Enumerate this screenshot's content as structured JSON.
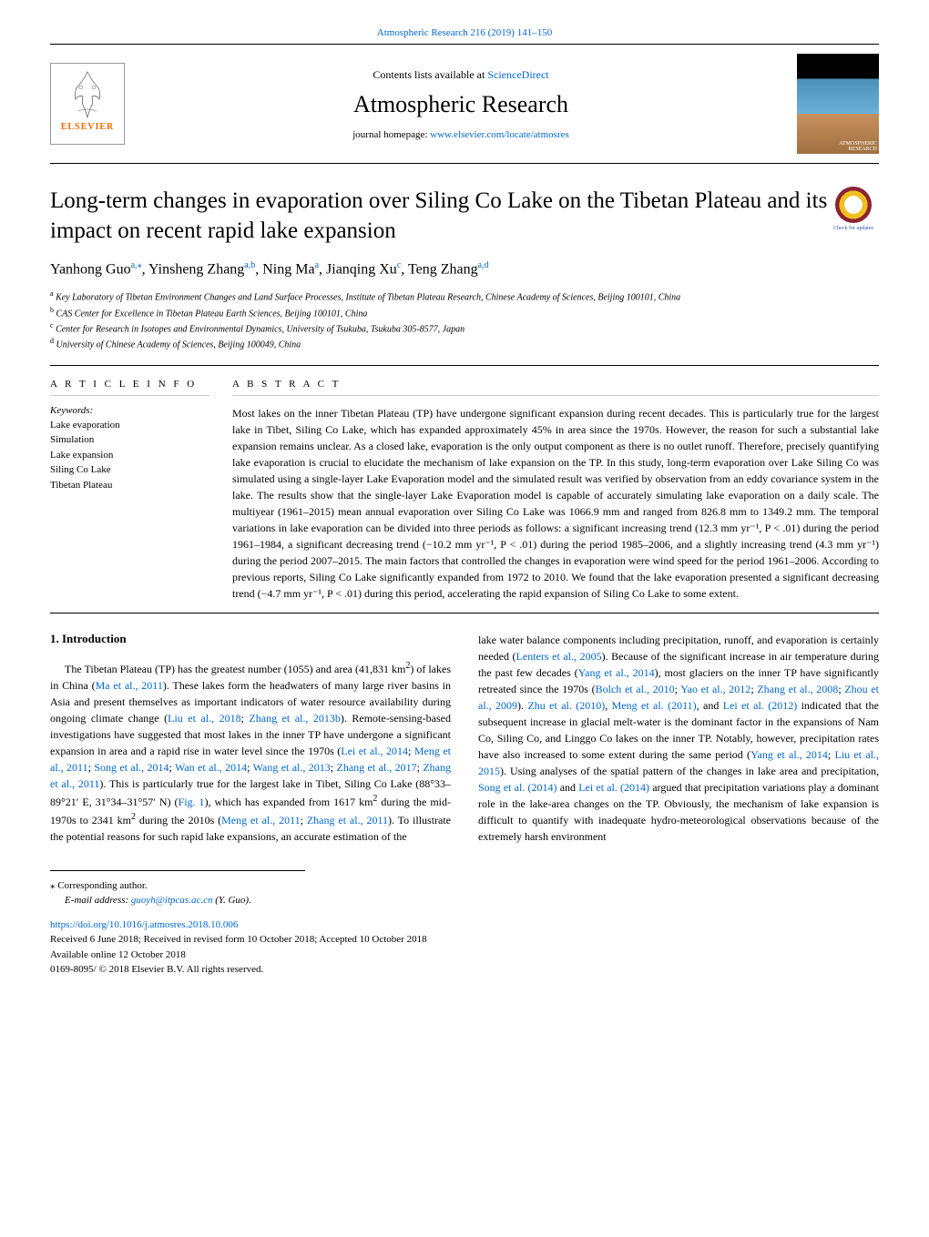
{
  "citation": "Atmospheric Research 216 (2019) 141–150",
  "header": {
    "contents_prefix": "Contents lists available at ",
    "contents_link": "ScienceDirect",
    "journal": "Atmospheric Research",
    "homepage_prefix": "journal homepage: ",
    "homepage_url": "www.elsevier.com/locate/atmosres",
    "publisher": "ELSEVIER",
    "cover_label1": "ATMOSPHERIC",
    "cover_label2": "RESEARCH"
  },
  "check_updates": "Check for updates",
  "article": {
    "title": "Long-term changes in evaporation over Siling Co Lake on the Tibetan Plateau and its impact on recent rapid lake expansion",
    "authors_html": "Yanhong Guo<sup>a,</sup><sup>⁎</sup>, Yinsheng Zhang<sup>a,b</sup>, Ning Ma<sup>a</sup>, Jianqing Xu<sup>c</sup>, Teng Zhang<sup>a,d</sup>",
    "affiliations": {
      "a": "Key Laboratory of Tibetan Environment Changes and Land Surface Processes, Institute of Tibetan Plateau Research, Chinese Academy of Sciences, Beijing 100101, China",
      "b": "CAS Center for Excellence in Tibetan Plateau Earth Sciences, Beijing 100101, China",
      "c": "Center for Research in Isotopes and Environmental Dynamics, University of Tsukuba, Tsukuba 305-8577, Japan",
      "d": "University of Chinese Academy of Sciences, Beijing 100049, China"
    }
  },
  "labels": {
    "article_info": "A R T I C L E  I N F O",
    "abstract": "A B S T R A C T",
    "keywords": "Keywords:"
  },
  "keywords": [
    "Lake evaporation",
    "Simulation",
    "Lake expansion",
    "Siling Co Lake",
    "Tibetan Plateau"
  ],
  "abstract": "Most lakes on the inner Tibetan Plateau (TP) have undergone significant expansion during recent decades. This is particularly true for the largest lake in Tibet, Siling Co Lake, which has expanded approximately 45% in area since the 1970s. However, the reason for such a substantial lake expansion remains unclear. As a closed lake, evaporation is the only output component as there is no outlet runoff. Therefore, precisely quantifying lake evaporation is crucial to elucidate the mechanism of lake expansion on the TP. In this study, long-term evaporation over Lake Siling Co was simulated using a single-layer Lake Evaporation model and the simulated result was verified by observation from an eddy covariance system in the lake. The results show that the single-layer Lake Evaporation model is capable of accurately simulating lake evaporation on a daily scale. The multiyear (1961–2015) mean annual evaporation over Siling Co Lake was 1066.9 mm and ranged from 826.8 mm to 1349.2 mm. The temporal variations in lake evaporation can be divided into three periods as follows: a significant increasing trend (12.3 mm yr⁻¹, P < .01) during the period 1961–1984, a significant decreasing trend (−10.2 mm yr⁻¹, P < .01) during the period 1985–2006, and a slightly increasing trend (4.3 mm yr⁻¹) during the period 2007–2015. The main factors that controlled the changes in evaporation were wind speed for the period 1961–2006. According to previous reports, Siling Co Lake significantly expanded from 1972 to 2010. We found that the lake evaporation presented a significant decreasing trend (−4.7 mm yr⁻¹, P < .01) during this period, accelerating the rapid expansion of Siling Co Lake to some extent.",
  "body": {
    "heading1": "1. Introduction",
    "col1_html": "The Tibetan Plateau (TP) has the greatest number (1055) and area (41,831 km<sup>2</sup>) of lakes in China (<a>Ma et al., 2011</a>). These lakes form the headwaters of many large river basins in Asia and present themselves as important indicators of water resource availability during ongoing climate change (<a>Liu et al., 2018</a>; <a>Zhang et al., 2013b</a>). Remote-sensing-based investigations have suggested that most lakes in the inner TP have undergone a significant expansion in area and a rapid rise in water level since the 1970s (<a>Lei et al., 2014</a>; <a>Meng et al., 2011</a>; <a>Song et al., 2014</a>; <a>Wan et al., 2014</a>; <a>Wang et al., 2013</a>; <a>Zhang et al., 2017</a>; <a>Zhang et al., 2011</a>). This is particularly true for the largest lake in Tibet, Siling Co Lake (88°33–89°21′ E, 31°34–31°57′ N) (<a>Fig. 1</a>), which has expanded from 1617 km<sup>2</sup> during the mid-1970s to 2341 km<sup>2</sup> during the 2010s (<a>Meng et al., 2011</a>; <a>Zhang et al., 2011</a>). To illustrate the potential reasons for such rapid lake expansions, an accurate estimation of the",
    "col2_html": "lake water balance components including precipitation, runoff, and evaporation is certainly needed (<a>Lenters et al., 2005</a>). Because of the significant increase in air temperature during the past few decades (<a>Yang et al., 2014</a>), most glaciers on the inner TP have significantly retreated since the 1970s (<a>Bolch et al., 2010</a>; <a>Yao et al., 2012</a>; <a>Zhang et al., 2008</a>; <a>Zhou et al., 2009</a>). <a>Zhu et al. (2010)</a>, <a>Meng et al. (2011)</a>, and <a>Lei et al. (2012)</a> indicated that the subsequent increase in glacial melt-water is the dominant factor in the expansions of Nam Co, Siling Co, and Linggo Co lakes on the inner TP. Notably, however, precipitation rates have also increased to some extent during the same period (<a>Yang et al., 2014</a>; <a>Liu et al., 2015</a>). Using analyses of the spatial pattern of the changes in lake area and precipitation, <a>Song et al. (2014)</a> and <a>Lei et al. (2014)</a> argued that precipitation variations play a dominant role in the lake-area changes on the TP. Obviously, the mechanism of lake expansion is difficult to quantify with inadequate hydro-meteorological observations because of the extremely harsh environment"
  },
  "footnotes": {
    "corresponding": "⁎ Corresponding author.",
    "email_prefix": "E-mail address: ",
    "email": "guoyh@itpcas.ac.cn",
    "email_suffix": " (Y. Guo)."
  },
  "bottom": {
    "doi": "https://doi.org/10.1016/j.atmosres.2018.10.006",
    "received": "Received 6 June 2018; Received in revised form 10 October 2018; Accepted 10 October 2018",
    "online": "Available online 12 October 2018",
    "copyright": "0169-8095/ © 2018 Elsevier B.V. All rights reserved."
  }
}
